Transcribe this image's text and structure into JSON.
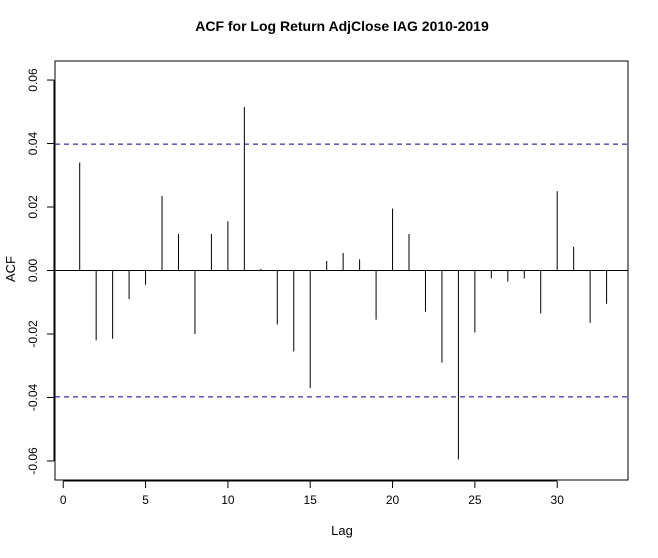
{
  "chart_data": {
    "type": "bar",
    "title": "ACF for Log Return AdjClose IAG 2010-2019",
    "xlabel": "Lag",
    "ylabel": "ACF",
    "xlim": [
      -0.5,
      34.3
    ],
    "ylim": [
      -0.066,
      0.066
    ],
    "x_ticks": [
      0,
      5,
      10,
      15,
      20,
      25,
      30
    ],
    "y_ticks": [
      -0.06,
      -0.04,
      -0.02,
      0.0,
      0.02,
      0.04,
      0.06
    ],
    "y_tick_labels": [
      "-0.06",
      "-0.04",
      "-0.02",
      "0.00",
      "0.02",
      "0.04",
      "0.06"
    ],
    "confidence_bounds": [
      0.0398,
      -0.0398
    ],
    "grid": false,
    "legend": "none",
    "colors": {
      "bars": "#000000",
      "confidence": "#00008b",
      "axis": "#000000"
    },
    "lags": [
      1,
      2,
      3,
      4,
      5,
      6,
      7,
      8,
      9,
      10,
      11,
      12,
      13,
      14,
      15,
      16,
      17,
      18,
      19,
      20,
      21,
      22,
      23,
      24,
      25,
      26,
      27,
      28,
      29,
      30,
      31,
      32,
      33
    ],
    "values": [
      0.034,
      -0.022,
      -0.0215,
      -0.009,
      -0.0045,
      0.0235,
      0.0115,
      -0.02,
      0.0115,
      0.0155,
      0.0515,
      0.0005,
      -0.017,
      -0.0255,
      -0.037,
      0.003,
      0.0055,
      0.0035,
      -0.0155,
      0.0195,
      0.0115,
      -0.013,
      -0.029,
      -0.0595,
      -0.0195,
      -0.0025,
      -0.0035,
      -0.0025,
      -0.0135,
      0.025,
      0.0075,
      -0.0165,
      -0.0105
    ]
  }
}
